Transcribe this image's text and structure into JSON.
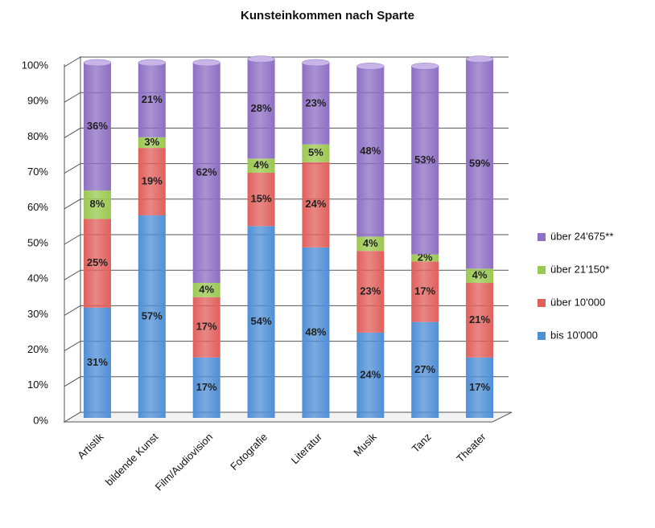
{
  "chart_data": {
    "type": "stacked_bar",
    "title": "Kunsteinkommen nach Sparte",
    "categories": [
      "Artistik",
      "bildende Kunst",
      "Film/Audiovision",
      "Fotografie",
      "Literatur",
      "Musik",
      "Tanz",
      "Theater"
    ],
    "series": [
      {
        "name": "bis 10'000",
        "color": "#4f8fd6",
        "values": [
          31,
          57,
          17,
          54,
          48,
          24,
          27,
          17
        ],
        "value_labels": [
          "31%",
          "57%",
          "17%",
          "54%",
          "48%",
          "24%",
          "27%",
          "17%"
        ]
      },
      {
        "name": "über 10'000",
        "color": "#e0605c",
        "values": [
          25,
          19,
          17,
          15,
          24,
          23,
          17,
          21
        ],
        "value_labels": [
          "25%",
          "19%",
          "17%",
          "15%",
          "24%",
          "23%",
          "17%",
          "21%"
        ]
      },
      {
        "name": "über 21'150*",
        "color": "#9bc850",
        "values": [
          8,
          3,
          4,
          4,
          5,
          4,
          2,
          4
        ],
        "value_labels": [
          "8%",
          "3%",
          "4%",
          "4%",
          "5%",
          "4%",
          "2%",
          "4%"
        ]
      },
      {
        "name": "über 24'675**",
        "color": "#8e6fc4",
        "values": [
          36,
          21,
          62,
          28,
          23,
          48,
          53,
          59
        ],
        "value_labels": [
          "36%",
          "21%",
          "62%",
          "28%",
          "23%",
          "48%",
          "53%",
          "59%"
        ]
      }
    ],
    "ylim": [
      0,
      100
    ],
    "yticks": [
      {
        "value": 0,
        "label": "0%"
      },
      {
        "value": 10,
        "label": "10%"
      },
      {
        "value": 20,
        "label": "20%"
      },
      {
        "value": 30,
        "label": "30%"
      },
      {
        "value": 40,
        "label": "40%"
      },
      {
        "value": 50,
        "label": "50%"
      },
      {
        "value": 60,
        "label": "60%"
      },
      {
        "value": 70,
        "label": "70%"
      },
      {
        "value": 80,
        "label": "80%"
      },
      {
        "value": 90,
        "label": "90%"
      },
      {
        "value": 100,
        "label": "100%"
      }
    ],
    "grid": true,
    "legend": "right"
  }
}
